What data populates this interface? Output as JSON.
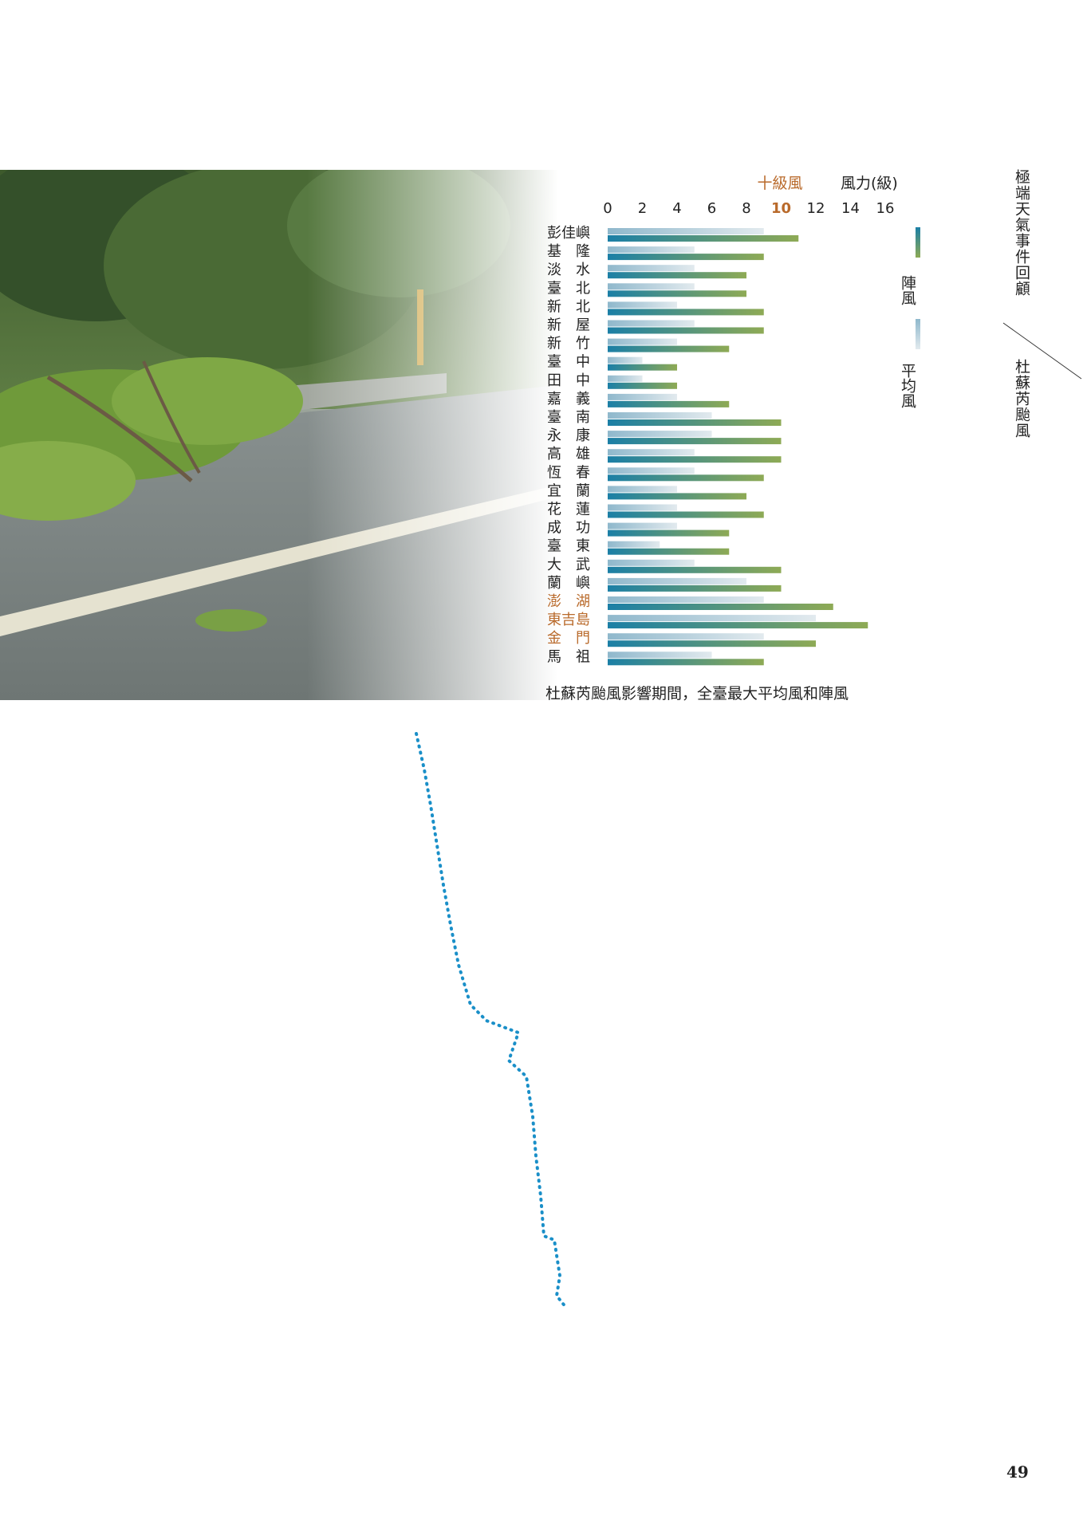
{
  "header": {
    "section_title": "極端天氣事件回顧",
    "chapter_title": "杜蘇芮颱風"
  },
  "page_number": "49",
  "colors": {
    "gust_start": "#1b7fa6",
    "gust_end": "#8eaa55",
    "mean_start": "#8fb8cc",
    "mean_end": "#e2eaee",
    "highlight": "#b96a2b",
    "track": "#1a8fc8"
  },
  "chart_data": {
    "type": "bar",
    "orientation": "horizontal",
    "title": "杜蘇芮颱風影響期間，全臺最大平均風和陣風",
    "axis_label": "風力(級)",
    "reference_label": "十級風",
    "reference_value": 10,
    "xlim": [
      0,
      16
    ],
    "xticks": [
      "0",
      "2",
      "4",
      "6",
      "8",
      "10",
      "12",
      "14",
      "16"
    ],
    "categories": [
      "彭佳嶼",
      "基　隆",
      "淡　水",
      "臺　北",
      "新　北",
      "新　屋",
      "新　竹",
      "臺　中",
      "田　中",
      "嘉　義",
      "臺　南",
      "永　康",
      "高　雄",
      "恆　春",
      "宜　蘭",
      "花　蓮",
      "成　功",
      "臺　東",
      "大　武",
      "蘭　嶼",
      "澎　湖",
      "東吉島",
      "金　門",
      "馬　祖"
    ],
    "highlighted_categories": [
      "澎　湖",
      "東吉島",
      "金　門"
    ],
    "series": [
      {
        "name": "平均風",
        "values": [
          9,
          5,
          5,
          5,
          4,
          5,
          4,
          2,
          2,
          4,
          6,
          6,
          5,
          5,
          4,
          4,
          4,
          3,
          5,
          8,
          9,
          12,
          9,
          6
        ]
      },
      {
        "name": "陣風",
        "values": [
          11,
          9,
          8,
          8,
          9,
          9,
          7,
          4,
          4,
          7,
          10,
          10,
          10,
          9,
          8,
          9,
          7,
          7,
          10,
          10,
          13,
          15,
          12,
          9
        ]
      }
    ],
    "legend": [
      "陣風",
      "平均風"
    ],
    "legend_position": "right"
  }
}
